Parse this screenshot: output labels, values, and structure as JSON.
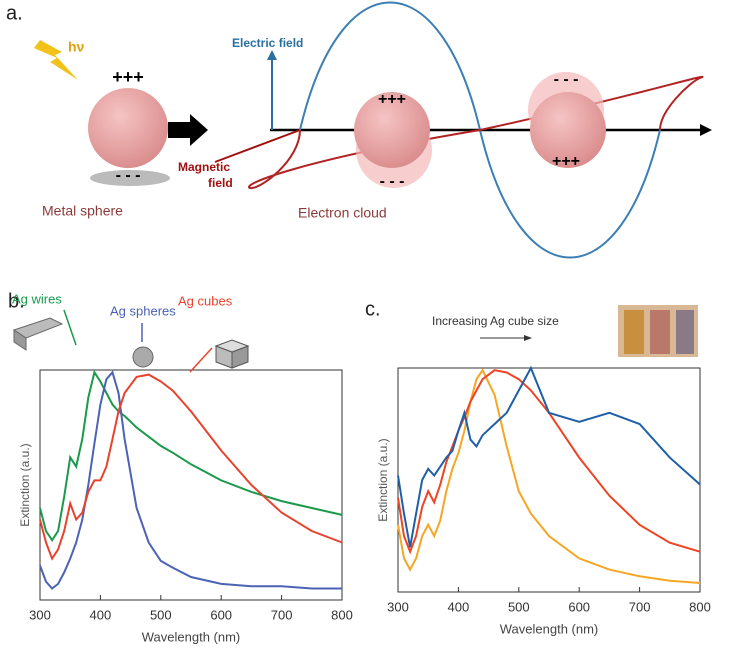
{
  "panel_a": {
    "panel_label": "a.",
    "light": "hν",
    "electric_field": "Electric field",
    "magnetic_field": [
      "Magnetic",
      "field"
    ],
    "metal_sphere": "Metal sphere",
    "electron_cloud": "Electron cloud",
    "charges": [
      "+++",
      "- - -",
      "+++",
      "- - -",
      "- - -",
      "+++"
    ]
  },
  "chart_data": [
    {
      "type": "line",
      "panel_label": "b.",
      "xlabel": "Wavelength (nm)",
      "ylabel": "Extinction (a.u.)",
      "x": [
        300,
        310,
        320,
        330,
        340,
        350,
        360,
        370,
        380,
        390,
        400,
        410,
        420,
        430,
        440,
        460,
        480,
        500,
        520,
        550,
        600,
        650,
        700,
        750,
        800
      ],
      "xlim": [
        300,
        800
      ],
      "xticks": [
        300,
        400,
        500,
        600,
        700,
        800
      ],
      "ylim": [
        0,
        1
      ],
      "series": [
        {
          "name": "Ag wires",
          "color": "#1a9a4a",
          "values": [
            0.4,
            0.3,
            0.26,
            0.3,
            0.45,
            0.62,
            0.58,
            0.7,
            0.88,
            0.99,
            0.95,
            0.9,
            0.85,
            0.82,
            0.8,
            0.75,
            0.71,
            0.67,
            0.64,
            0.59,
            0.52,
            0.47,
            0.43,
            0.4,
            0.37
          ]
        },
        {
          "name": "Ag spheres",
          "color": "#4b62b5",
          "values": [
            0.15,
            0.08,
            0.05,
            0.07,
            0.12,
            0.18,
            0.25,
            0.35,
            0.5,
            0.68,
            0.85,
            0.96,
            0.99,
            0.9,
            0.7,
            0.4,
            0.25,
            0.17,
            0.14,
            0.1,
            0.07,
            0.06,
            0.06,
            0.05,
            0.05
          ]
        },
        {
          "name": "Ag cubes",
          "color": "#e8432e",
          "values": [
            0.35,
            0.25,
            0.18,
            0.22,
            0.3,
            0.42,
            0.35,
            0.38,
            0.47,
            0.52,
            0.52,
            0.58,
            0.7,
            0.82,
            0.9,
            0.97,
            0.98,
            0.95,
            0.91,
            0.82,
            0.65,
            0.5,
            0.38,
            0.3,
            0.25
          ]
        }
      ]
    },
    {
      "type": "line",
      "panel_label": "c.",
      "xlabel": "Wavelength (nm)",
      "ylabel": "Extinction (a.u.)",
      "annotation": "Increasing Ag cube size",
      "x": [
        300,
        310,
        320,
        330,
        340,
        350,
        360,
        370,
        380,
        390,
        400,
        410,
        420,
        430,
        440,
        460,
        480,
        500,
        520,
        550,
        600,
        650,
        700,
        750,
        800
      ],
      "xlim": [
        300,
        800
      ],
      "xticks": [
        300,
        400,
        500,
        600,
        700,
        800
      ],
      "ylim": [
        0,
        1
      ],
      "series": [
        {
          "color": "#f5a623",
          "values": [
            0.3,
            0.15,
            0.1,
            0.15,
            0.25,
            0.3,
            0.25,
            0.32,
            0.45,
            0.55,
            0.62,
            0.72,
            0.85,
            0.95,
            0.99,
            0.88,
            0.65,
            0.45,
            0.35,
            0.25,
            0.15,
            0.1,
            0.07,
            0.05,
            0.04
          ]
        },
        {
          "color": "#ee4424",
          "values": [
            0.42,
            0.25,
            0.18,
            0.25,
            0.38,
            0.45,
            0.4,
            0.48,
            0.58,
            0.65,
            0.72,
            0.78,
            0.85,
            0.9,
            0.95,
            0.99,
            0.98,
            0.95,
            0.9,
            0.8,
            0.6,
            0.43,
            0.3,
            0.22,
            0.18
          ]
        },
        {
          "color": "#1f5fa8",
          "values": [
            0.52,
            0.35,
            0.2,
            0.35,
            0.5,
            0.55,
            0.52,
            0.56,
            0.6,
            0.63,
            0.72,
            0.8,
            0.68,
            0.65,
            0.7,
            0.75,
            0.8,
            0.9,
            1.0,
            0.8,
            0.76,
            0.8,
            0.75,
            0.6,
            0.48
          ]
        }
      ]
    }
  ]
}
